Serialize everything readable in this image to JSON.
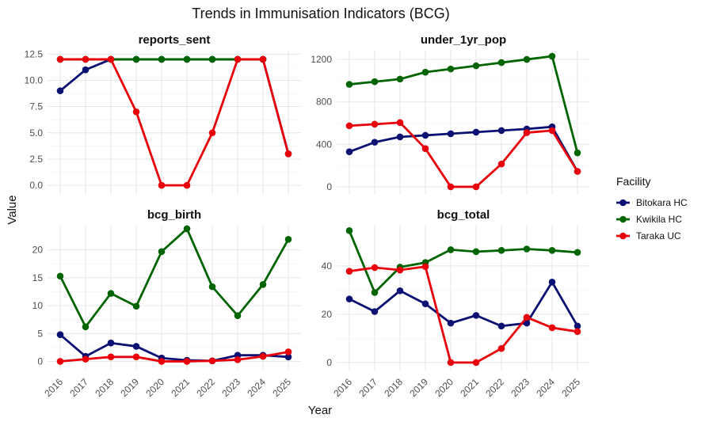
{
  "chart_data": {
    "type": "line",
    "title": "Trends in Immunisation Indicators (BCG)",
    "xlabel": "Year",
    "ylabel": "Value",
    "x": [
      "2016",
      "2017",
      "2018",
      "2019",
      "2020",
      "2021",
      "2022",
      "2023",
      "2024",
      "2025"
    ],
    "legend": {
      "title": "Facility",
      "placement": "right"
    },
    "series_styles": [
      {
        "name": "Bitokara HC",
        "color": "#0a1172"
      },
      {
        "name": "Kwikila HC",
        "color": "#006400"
      },
      {
        "name": "Taraka UC",
        "color": "#e8000b"
      }
    ],
    "grid": true,
    "panels": [
      {
        "title": "reports_sent",
        "ylim": [
          -0.9,
          12.9
        ],
        "yticks": [
          0,
          2.5,
          5,
          7.5,
          10,
          12.5
        ],
        "ytick_labels": [
          "0.0",
          "2.5",
          "5.0",
          "7.5",
          "10.0",
          "12.5"
        ],
        "series": [
          {
            "name": "Bitokara HC",
            "values": [
              9,
              11,
              12,
              12,
              12,
              12,
              12,
              12,
              12,
              3
            ]
          },
          {
            "name": "Kwikila HC",
            "values": [
              12,
              12,
              12,
              12,
              12,
              12,
              12,
              12,
              12,
              null
            ]
          },
          {
            "name": "Taraka UC",
            "values": [
              12,
              12,
              12,
              7,
              0,
              0,
              5,
              12,
              12,
              3
            ]
          }
        ]
      },
      {
        "title": "under_1yr_pop",
        "ylim": [
          -75,
          1290
        ],
        "yticks": [
          0,
          400,
          800,
          1200
        ],
        "ytick_labels": [
          "0",
          "400",
          "800",
          "1200"
        ],
        "series": [
          {
            "name": "Bitokara HC",
            "values": [
              330,
              420,
              470,
              485,
              500,
              515,
              530,
              545,
              565,
              145
            ]
          },
          {
            "name": "Kwikila HC",
            "values": [
              965,
              990,
              1015,
              1080,
              1110,
              1140,
              1170,
              1200,
              1230,
              320
            ]
          },
          {
            "name": "Taraka UC",
            "values": [
              575,
              590,
              605,
              360,
              0,
              0,
              215,
              510,
              530,
              145
            ]
          }
        ]
      },
      {
        "title": "bcg_birth",
        "ylim": [
          -1.5,
          24.5
        ],
        "yticks": [
          0,
          5,
          10,
          15,
          20
        ],
        "ytick_labels": [
          "0",
          "5",
          "10",
          "15",
          "20"
        ],
        "series": [
          {
            "name": "Bitokara HC",
            "values": [
              4.8,
              0.9,
              3.3,
              2.7,
              0.6,
              0.2,
              0.1,
              1.1,
              1.1,
              0.8
            ]
          },
          {
            "name": "Kwikila HC",
            "values": [
              15.3,
              6.2,
              12.2,
              9.9,
              19.7,
              23.8,
              13.4,
              8.2,
              13.8,
              21.9
            ]
          },
          {
            "name": "Taraka UC",
            "values": [
              0,
              0.4,
              0.8,
              0.8,
              0,
              0,
              0.1,
              0.3,
              0.9,
              1.7
            ]
          }
        ]
      },
      {
        "title": "bcg_total",
        "ylim": [
          -3,
          57
        ],
        "yticks": [
          0,
          20,
          40
        ],
        "ytick_labels": [
          "0",
          "20",
          "40"
        ],
        "series": [
          {
            "name": "Bitokara HC",
            "values": [
              26.3,
              21.1,
              29.7,
              24.3,
              16.3,
              19.5,
              15.1,
              16.3,
              33.3,
              15.1
            ]
          },
          {
            "name": "Kwikila HC",
            "values": [
              54.6,
              29.0,
              39.5,
              41.4,
              46.7,
              45.9,
              46.4,
              47.0,
              46.4,
              45.6
            ]
          },
          {
            "name": "Taraka UC",
            "values": [
              37.8,
              39.3,
              38.3,
              39.7,
              0,
              0,
              5.8,
              18.7,
              14.4,
              12.8
            ]
          }
        ]
      }
    ]
  }
}
